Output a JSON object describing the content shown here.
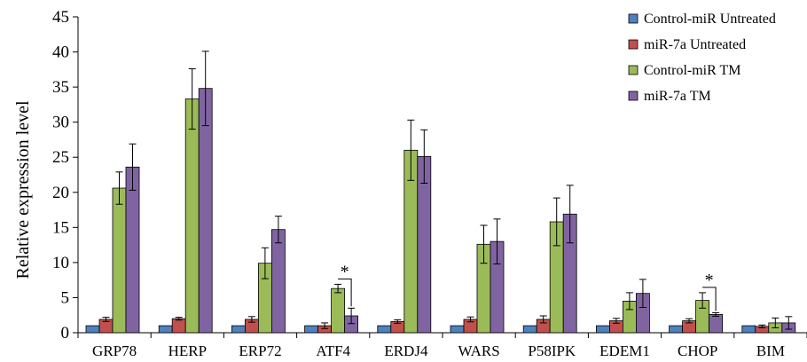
{
  "chart_data": {
    "type": "bar",
    "ylabel": "Relative expression level",
    "xlabel": "",
    "ylim": [
      0,
      45
    ],
    "yticks": [
      0,
      5,
      10,
      15,
      20,
      25,
      30,
      35,
      40,
      45
    ],
    "grid": false,
    "legend_position": "top-right",
    "categories": [
      "GRP78",
      "HERP",
      "ERP72",
      "ATF4",
      "ERDJ4",
      "WARS",
      "P58IPK",
      "EDEM1",
      "CHOP",
      "BIM"
    ],
    "series": [
      {
        "name": "Control-miR Untreated",
        "color": "#4f81bd",
        "values": [
          1,
          1,
          1,
          1,
          1,
          1,
          1,
          1,
          1,
          1
        ],
        "errors": [
          0,
          0,
          0,
          0,
          0,
          0,
          0,
          0,
          0,
          0
        ]
      },
      {
        "name": "miR-7a Untreated",
        "color": "#c0504d",
        "values": [
          1.9,
          2.0,
          1.9,
          1.0,
          1.6,
          1.9,
          1.9,
          1.7,
          1.7,
          0.9
        ],
        "errors": [
          0.3,
          0.2,
          0.4,
          0.4,
          0.25,
          0.35,
          0.5,
          0.35,
          0.3,
          0.2
        ]
      },
      {
        "name": "Control-miR TM",
        "color": "#9bbb59",
        "values": [
          20.6,
          33.3,
          9.9,
          6.3,
          26.0,
          12.6,
          15.8,
          4.5,
          4.6,
          1.4
        ],
        "errors": [
          2.3,
          4.3,
          2.2,
          0.6,
          4.3,
          2.7,
          3.4,
          1.2,
          1.1,
          0.7
        ]
      },
      {
        "name": "miR-7a TM",
        "color": "#8064a2",
        "values": [
          23.6,
          34.8,
          14.7,
          2.4,
          25.1,
          13.0,
          16.9,
          5.6,
          2.6,
          1.4
        ],
        "errors": [
          3.3,
          5.3,
          1.9,
          1.1,
          3.8,
          3.2,
          4.1,
          2.0,
          0.25,
          0.9
        ]
      }
    ],
    "annotations": [
      {
        "category": "ATF4",
        "between": [
          "Control-miR TM",
          "miR-7a TM"
        ],
        "text": "*"
      },
      {
        "category": "CHOP",
        "between": [
          "Control-miR TM",
          "miR-7a TM"
        ],
        "text": "*"
      }
    ]
  }
}
